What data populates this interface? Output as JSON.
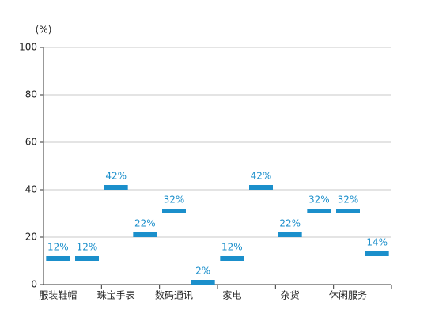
{
  "chart_data": {
    "type": "marker",
    "y_unit": "(%)",
    "categories": [
      "服装鞋帽",
      null,
      "珠宝手表",
      null,
      "数码通讯",
      null,
      "家电",
      null,
      "杂货",
      null,
      "休闲服务",
      null
    ],
    "values": [
      12,
      12,
      42,
      22,
      32,
      2,
      12,
      42,
      22,
      32,
      32,
      14
    ],
    "value_labels": [
      "12%",
      "12%",
      "42%",
      "22%",
      "32%",
      "2%",
      "12%",
      "42%",
      "22%",
      "32%",
      "32%",
      "14%"
    ],
    "color": "#1b8fcb",
    "ylim": [
      0,
      100
    ],
    "yticks": [
      0,
      20,
      40,
      60,
      80,
      100
    ],
    "grid": true
  }
}
